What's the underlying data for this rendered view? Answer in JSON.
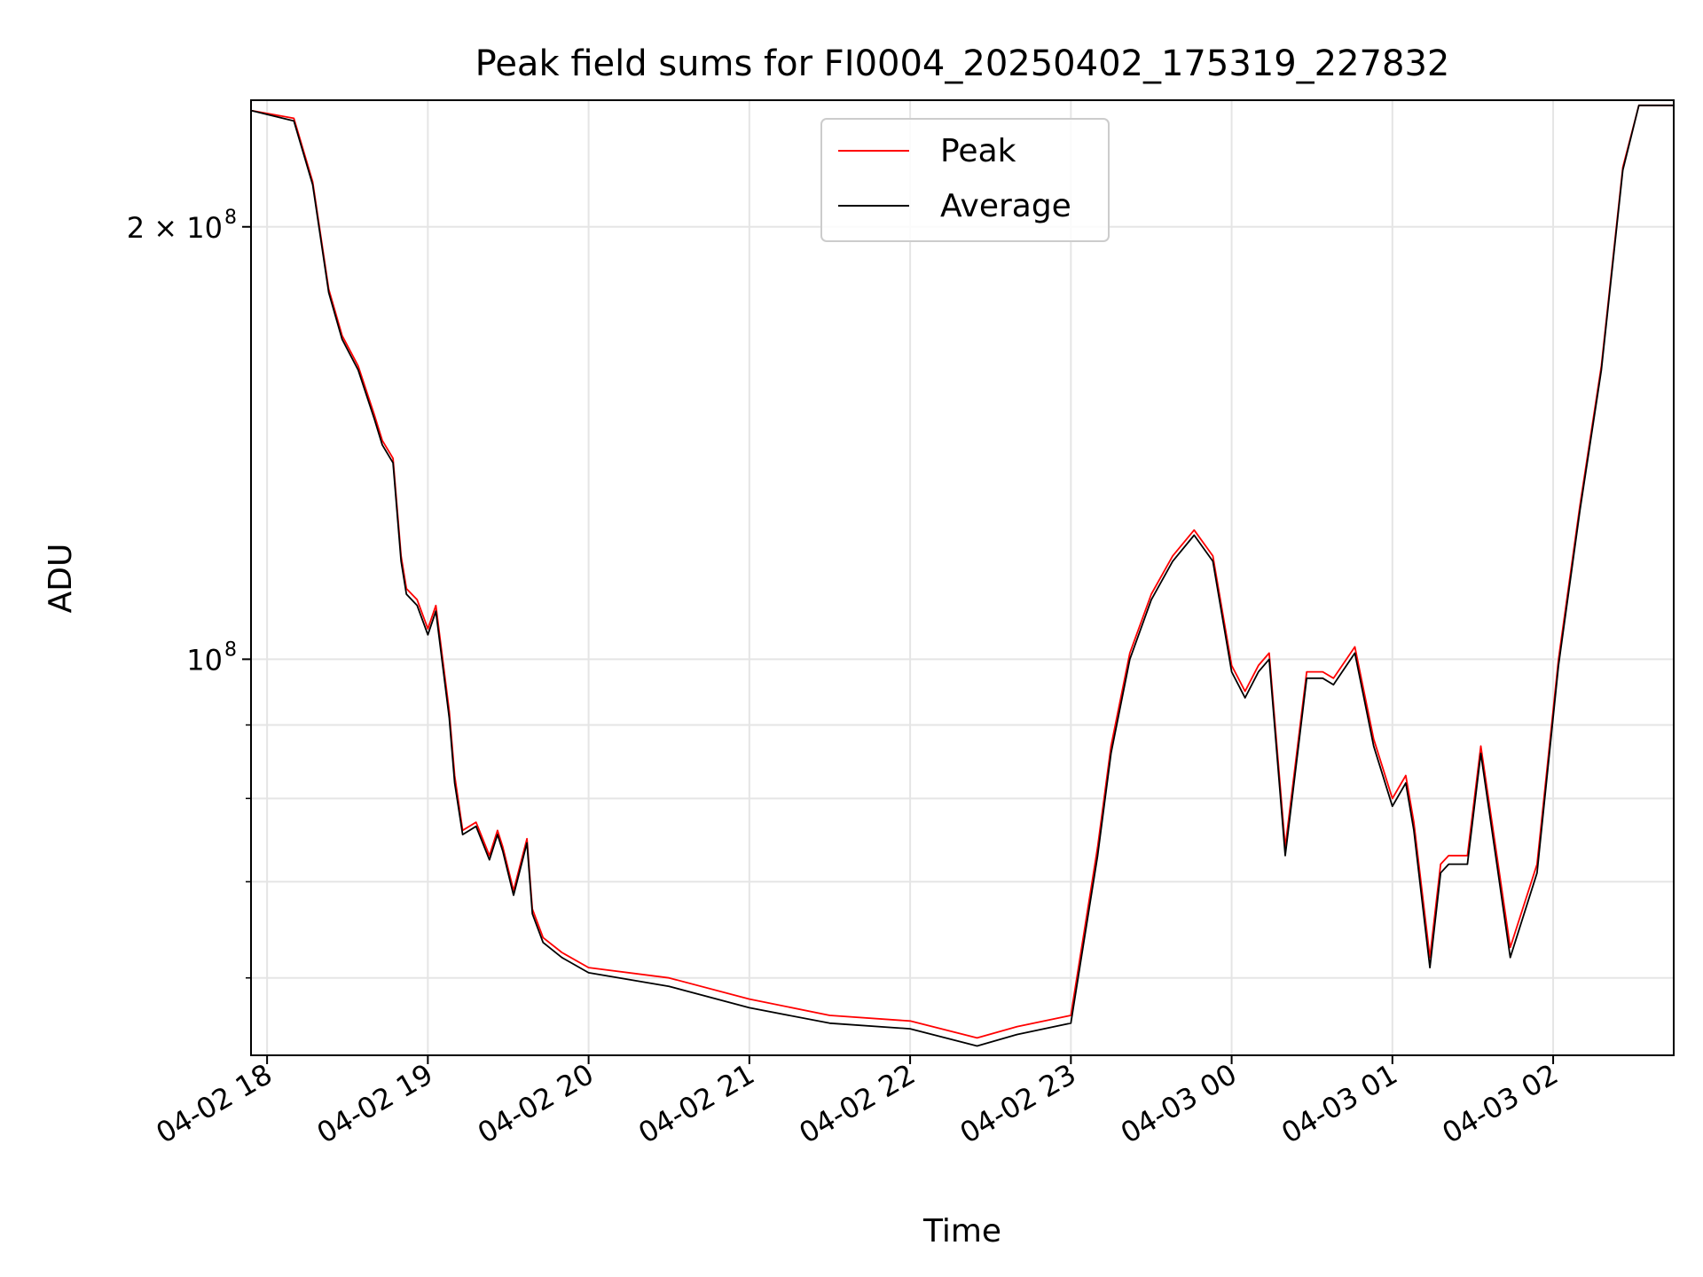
{
  "chart_data": {
    "type": "line",
    "title": "Peak field sums for FI0004_20250402_175319_227832",
    "xlabel": "Time",
    "ylabel": "ADU",
    "y_scale": "log",
    "ylim": [
      53000000,
      245000000
    ],
    "xlim": [
      "2025-04-02 17:54",
      "2025-04-03 02:45"
    ],
    "x_ticks": [
      "04-02 18",
      "04-02 19",
      "04-02 20",
      "04-02 21",
      "04-02 22",
      "04-02 23",
      "04-03 00",
      "04-03 01",
      "04-03 02"
    ],
    "y_tick_labels": [
      {
        "value": 200000000,
        "label": "2 × 10",
        "exp": "8"
      },
      {
        "value": 100000000,
        "label": "10",
        "exp": "8"
      }
    ],
    "y_minor_ticks": [
      60000000,
      70000000,
      80000000,
      90000000
    ],
    "grid": true,
    "legend": {
      "position": "upper center"
    },
    "series": [
      {
        "name": "Peak",
        "color": "#ff0000",
        "x": [
          "2025-04-02 17:54",
          "2025-04-02 18:10",
          "2025-04-02 18:17",
          "2025-04-02 18:23",
          "2025-04-02 18:28",
          "2025-04-02 18:34",
          "2025-04-02 18:40",
          "2025-04-02 18:43",
          "2025-04-02 18:47",
          "2025-04-02 18:50",
          "2025-04-02 18:52",
          "2025-04-02 18:56",
          "2025-04-02 19:00",
          "2025-04-02 19:03",
          "2025-04-02 19:08",
          "2025-04-02 19:10",
          "2025-04-02 19:13",
          "2025-04-02 19:18",
          "2025-04-02 19:23",
          "2025-04-02 19:26",
          "2025-04-02 19:28",
          "2025-04-02 19:32",
          "2025-04-02 19:37",
          "2025-04-02 19:39",
          "2025-04-02 19:43",
          "2025-04-02 19:50",
          "2025-04-02 20:00",
          "2025-04-02 20:30",
          "2025-04-02 21:00",
          "2025-04-02 21:30",
          "2025-04-02 22:00",
          "2025-04-02 22:25",
          "2025-04-02 22:40",
          "2025-04-02 23:00",
          "2025-04-02 23:10",
          "2025-04-02 23:15",
          "2025-04-02 23:22",
          "2025-04-02 23:30",
          "2025-04-02 23:38",
          "2025-04-02 23:46",
          "2025-04-02 23:53",
          "2025-04-03 00:00",
          "2025-04-03 00:05",
          "2025-04-03 00:10",
          "2025-04-03 00:14",
          "2025-04-03 00:20",
          "2025-04-03 00:28",
          "2025-04-03 00:34",
          "2025-04-03 00:38",
          "2025-04-03 00:46",
          "2025-04-03 00:53",
          "2025-04-03 01:00",
          "2025-04-03 01:05",
          "2025-04-03 01:08",
          "2025-04-03 01:14",
          "2025-04-03 01:18",
          "2025-04-03 01:21",
          "2025-04-03 01:28",
          "2025-04-03 01:33",
          "2025-04-03 01:39",
          "2025-04-03 01:44",
          "2025-04-03 01:54",
          "2025-04-03 02:02",
          "2025-04-03 02:10",
          "2025-04-03 02:18",
          "2025-04-03 02:26",
          "2025-04-03 02:32",
          "2025-04-03 02:45"
        ],
        "values": [
          241000000,
          238000000,
          215000000,
          181000000,
          168000000,
          160000000,
          148000000,
          142000000,
          138000000,
          118000000,
          112000000,
          110000000,
          105000000,
          109000000,
          92000000,
          83000000,
          76000000,
          77000000,
          73000000,
          76000000,
          74000000,
          69000000,
          75000000,
          67000000,
          64000000,
          62500000,
          61000000,
          60000000,
          58000000,
          56500000,
          56000000,
          54500000,
          55500000,
          56500000,
          74000000,
          87000000,
          101000000,
          111000000,
          118000000,
          123000000,
          118000000,
          99000000,
          95000000,
          99000000,
          101000000,
          74000000,
          98000000,
          98000000,
          97000000,
          102000000,
          88000000,
          80000000,
          83000000,
          77000000,
          62000000,
          72000000,
          73000000,
          73000000,
          87000000,
          73000000,
          63000000,
          72000000,
          100000000,
          128000000,
          160000000,
          220000000,
          243000000,
          243000000
        ]
      },
      {
        "name": "Average",
        "color": "#000000",
        "x": [
          "2025-04-02 17:54",
          "2025-04-02 18:10",
          "2025-04-02 18:17",
          "2025-04-02 18:23",
          "2025-04-02 18:28",
          "2025-04-02 18:34",
          "2025-04-02 18:40",
          "2025-04-02 18:43",
          "2025-04-02 18:47",
          "2025-04-02 18:50",
          "2025-04-02 18:52",
          "2025-04-02 18:56",
          "2025-04-02 19:00",
          "2025-04-02 19:03",
          "2025-04-02 19:08",
          "2025-04-02 19:10",
          "2025-04-02 19:13",
          "2025-04-02 19:18",
          "2025-04-02 19:23",
          "2025-04-02 19:26",
          "2025-04-02 19:28",
          "2025-04-02 19:32",
          "2025-04-02 19:37",
          "2025-04-02 19:39",
          "2025-04-02 19:43",
          "2025-04-02 19:50",
          "2025-04-02 20:00",
          "2025-04-02 20:30",
          "2025-04-02 21:00",
          "2025-04-02 21:30",
          "2025-04-02 22:00",
          "2025-04-02 22:25",
          "2025-04-02 22:40",
          "2025-04-02 23:00",
          "2025-04-02 23:10",
          "2025-04-02 23:15",
          "2025-04-02 23:22",
          "2025-04-02 23:30",
          "2025-04-02 23:38",
          "2025-04-02 23:46",
          "2025-04-02 23:53",
          "2025-04-03 00:00",
          "2025-04-03 00:05",
          "2025-04-03 00:10",
          "2025-04-03 00:14",
          "2025-04-03 00:20",
          "2025-04-03 00:28",
          "2025-04-03 00:34",
          "2025-04-03 00:38",
          "2025-04-03 00:46",
          "2025-04-03 00:53",
          "2025-04-03 01:00",
          "2025-04-03 01:05",
          "2025-04-03 01:08",
          "2025-04-03 01:14",
          "2025-04-03 01:18",
          "2025-04-03 01:21",
          "2025-04-03 01:28",
          "2025-04-03 01:33",
          "2025-04-03 01:39",
          "2025-04-03 01:44",
          "2025-04-03 01:54",
          "2025-04-03 02:02",
          "2025-04-03 02:10",
          "2025-04-03 02:18",
          "2025-04-03 02:26",
          "2025-04-03 02:32",
          "2025-04-03 02:45"
        ],
        "values": [
          241000000,
          237000000,
          214000000,
          180000000,
          167000000,
          159000000,
          147000000,
          141000000,
          137000000,
          117000000,
          111000000,
          109000000,
          104000000,
          108000000,
          91000000,
          82000000,
          75500000,
          76500000,
          72500000,
          75500000,
          73500000,
          68500000,
          74500000,
          66500000,
          63500000,
          62000000,
          60500000,
          59200000,
          57200000,
          55800000,
          55300000,
          53800000,
          54800000,
          55800000,
          73000000,
          86000000,
          100000000,
          110000000,
          117000000,
          122000000,
          117000000,
          98000000,
          94000000,
          98000000,
          100000000,
          73000000,
          97000000,
          97000000,
          96000000,
          101000000,
          87000000,
          79000000,
          82000000,
          76000000,
          61000000,
          71000000,
          72000000,
          72000000,
          86000000,
          72000000,
          62000000,
          71000000,
          99000000,
          127000000,
          159000000,
          219000000,
          243000000,
          243000000
        ]
      }
    ]
  }
}
